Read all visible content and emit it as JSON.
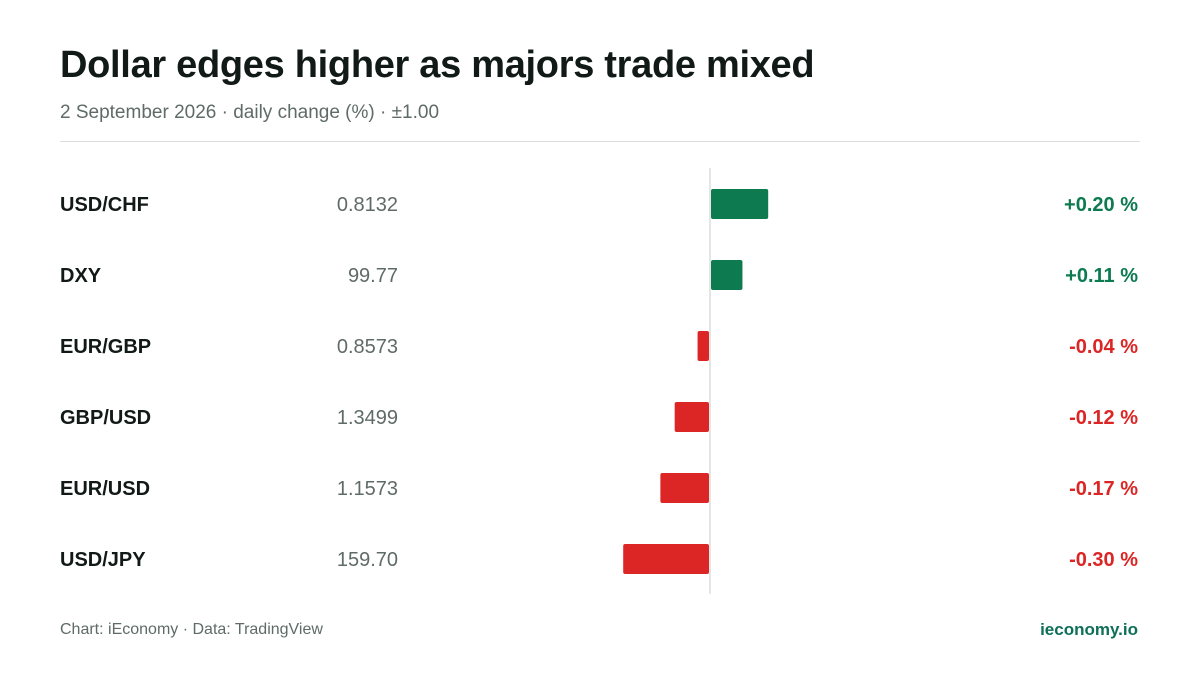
{
  "header": {
    "title": "Dollar edges higher as majors trade mixed",
    "subtitle": "2 September 2026 · daily change (%) · ±1.00"
  },
  "footer": {
    "credit": "Chart: iEconomy · Data: TradingView",
    "brand": "ieconomy.io"
  },
  "colors": {
    "positive": "#0d7a4f",
    "negative": "#dc2626",
    "axis": "#d9dedc"
  },
  "chart_data": {
    "type": "bar",
    "orientation": "horizontal",
    "axis_range": [
      -1.0,
      1.0
    ],
    "categories": [
      "USD/CHF",
      "DXY",
      "EUR/GBP",
      "GBP/USD",
      "EUR/USD",
      "USD/JPY"
    ],
    "prices": [
      "0.8132",
      "99.77",
      "0.8573",
      "1.3499",
      "1.1573",
      "159.70"
    ],
    "values": [
      0.2,
      0.11,
      -0.04,
      -0.12,
      -0.17,
      -0.3
    ],
    "value_labels": [
      "+0.20 %",
      "+0.11 %",
      "-0.04 %",
      "-0.12 %",
      "-0.17 %",
      "-0.30 %"
    ]
  }
}
